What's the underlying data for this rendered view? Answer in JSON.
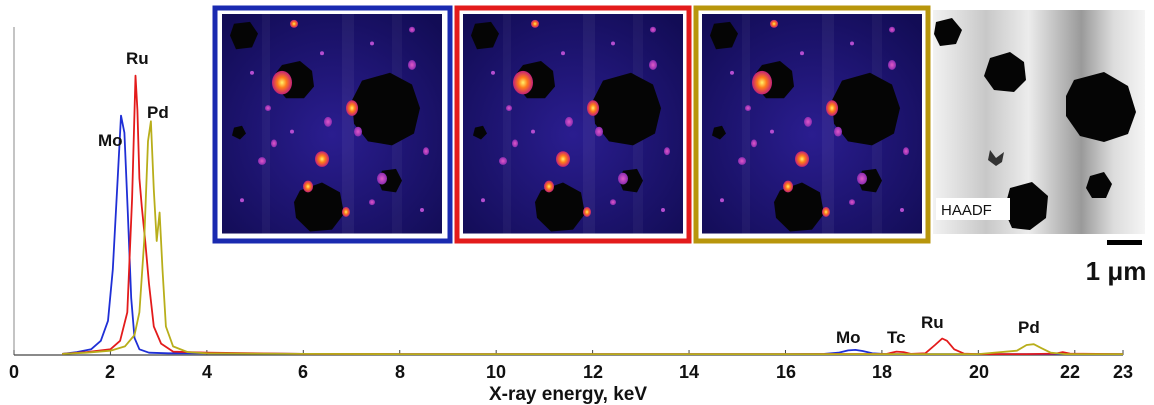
{
  "chart_data": {
    "type": "line",
    "xlabel": "X-ray energy, keV",
    "ylabel": "",
    "xlim": [
      0,
      23
    ],
    "ylim": [
      0,
      1
    ],
    "x_ticks": [
      "0",
      "2",
      "4",
      "6",
      "8",
      "10",
      "12",
      "14",
      "16",
      "18",
      "20",
      "22",
      "23"
    ],
    "series": [
      {
        "color": "#1f2fd6",
        "x": [
          1.0,
          1.3,
          1.6,
          1.8,
          1.95,
          2.05,
          2.15,
          2.22,
          2.29,
          2.36,
          2.43,
          2.5,
          2.6,
          2.8,
          3.2,
          4.0,
          6.0,
          8.0,
          10.0,
          12.0,
          14.0,
          16.0,
          16.8,
          17.1,
          17.3,
          17.45,
          17.6,
          17.8,
          18.1,
          19.0,
          20.0,
          21.0,
          22.0,
          23.0
        ],
        "y": [
          0.004,
          0.01,
          0.02,
          0.05,
          0.12,
          0.3,
          0.62,
          0.84,
          0.78,
          0.5,
          0.2,
          0.06,
          0.02,
          0.008,
          0.006,
          0.006,
          0.004,
          0.003,
          0.003,
          0.003,
          0.003,
          0.003,
          0.004,
          0.008,
          0.016,
          0.018,
          0.014,
          0.006,
          0.003,
          0.003,
          0.003,
          0.003,
          0.003,
          0.003
        ]
      },
      {
        "color": "#e31b1b",
        "x": [
          1.0,
          1.5,
          2.0,
          2.2,
          2.35,
          2.45,
          2.52,
          2.56,
          2.6,
          2.65,
          2.72,
          2.8,
          2.9,
          3.05,
          3.3,
          4.0,
          6.0,
          8.0,
          10.0,
          12.0,
          14.0,
          16.0,
          18.1,
          18.3,
          18.45,
          18.6,
          18.9,
          19.1,
          19.25,
          19.35,
          19.5,
          19.7,
          20.0,
          21.0,
          21.6,
          21.75,
          21.9,
          23.0
        ],
        "y": [
          0.004,
          0.01,
          0.02,
          0.05,
          0.15,
          0.55,
          0.98,
          0.86,
          0.62,
          0.52,
          0.4,
          0.25,
          0.1,
          0.04,
          0.012,
          0.008,
          0.004,
          0.003,
          0.003,
          0.003,
          0.003,
          0.003,
          0.004,
          0.012,
          0.01,
          0.004,
          0.006,
          0.035,
          0.058,
          0.05,
          0.02,
          0.005,
          0.003,
          0.003,
          0.005,
          0.01,
          0.005,
          0.003
        ]
      },
      {
        "color": "#b8ae1a",
        "x": [
          1.0,
          1.5,
          2.0,
          2.3,
          2.5,
          2.6,
          2.7,
          2.78,
          2.84,
          2.9,
          2.96,
          3.02,
          3.08,
          3.15,
          3.3,
          3.6,
          4.0,
          6.0,
          8.0,
          10.0,
          12.0,
          14.0,
          16.0,
          18.0,
          20.0,
          20.8,
          21.0,
          21.15,
          21.3,
          21.5,
          21.8,
          23.0
        ],
        "y": [
          0.004,
          0.008,
          0.015,
          0.03,
          0.07,
          0.15,
          0.4,
          0.75,
          0.82,
          0.58,
          0.4,
          0.5,
          0.3,
          0.1,
          0.03,
          0.01,
          0.006,
          0.004,
          0.003,
          0.003,
          0.003,
          0.003,
          0.003,
          0.003,
          0.003,
          0.015,
          0.035,
          0.038,
          0.025,
          0.008,
          0.003,
          0.003
        ]
      }
    ],
    "annotations": [
      "Mo",
      "Ru",
      "Pd",
      "Mo",
      "Tc",
      "Ru",
      "Pd"
    ],
    "inset_maps": [
      {
        "frame_color": "#1a2ab0"
      },
      {
        "frame_color": "#e31b1b"
      },
      {
        "frame_color": "#b8960c"
      },
      {
        "label": "HAADF"
      }
    ],
    "scale_bar": {
      "label": "1 μm"
    }
  }
}
